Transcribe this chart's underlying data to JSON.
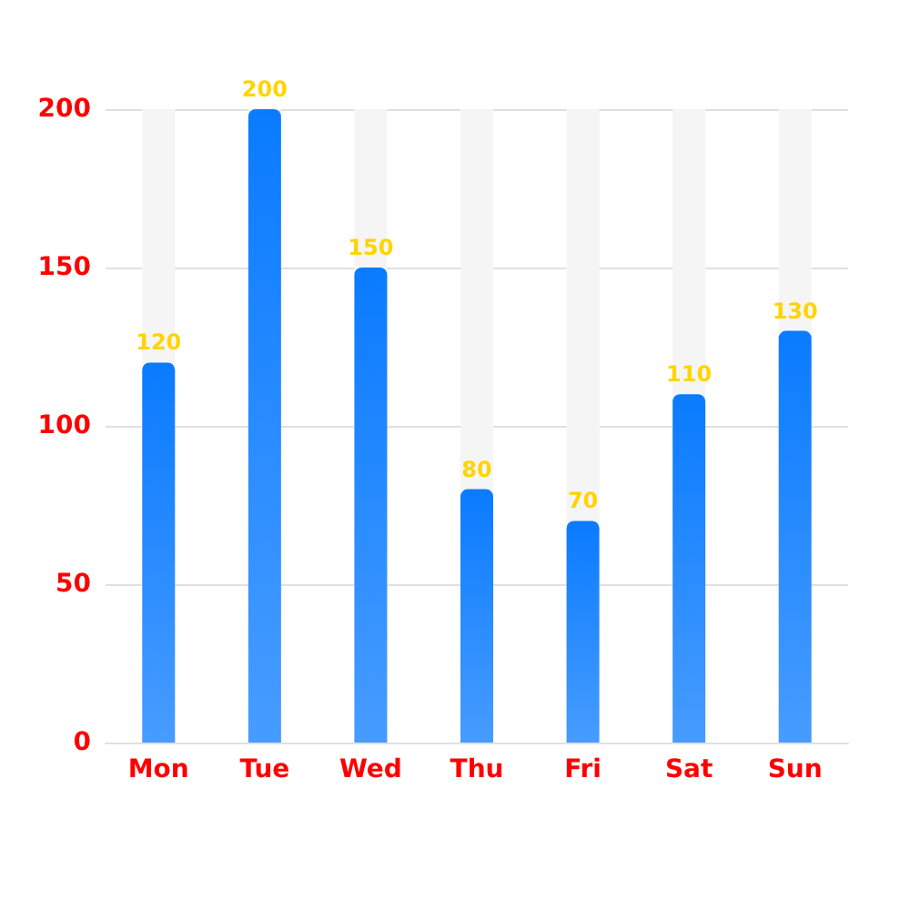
{
  "chart_data": {
    "type": "bar",
    "categories": [
      "Mon",
      "Tue",
      "Wed",
      "Thu",
      "Fri",
      "Sat",
      "Sun"
    ],
    "series": [
      {
        "color": "#0a7bff",
        "values": [
          120,
          200,
          150,
          80,
          70,
          110,
          130
        ]
      }
    ],
    "ylim": [
      0,
      200
    ],
    "yticks": [
      0,
      50,
      100,
      150,
      200
    ],
    "grid": "y",
    "data_labels": true
  }
}
